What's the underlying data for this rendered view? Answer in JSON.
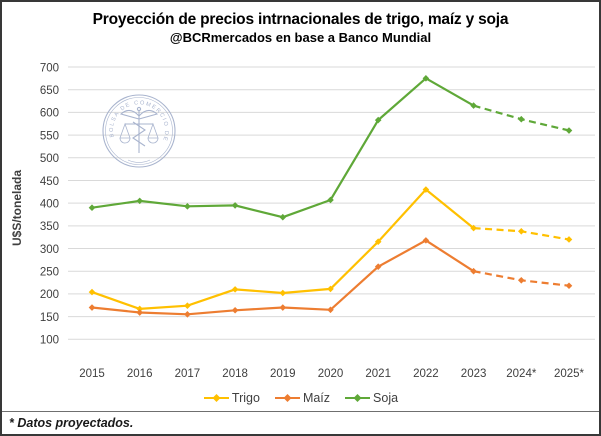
{
  "chart_data": {
    "type": "line",
    "title": "Proyección de precios intrnacionales de trigo, maíz y soja",
    "subtitle": "@BCRmercados en base a Banco Mundial",
    "ylabel": "U$S/tonelada",
    "xlabel": "",
    "categories": [
      "2015",
      "2016",
      "2017",
      "2018",
      "2019",
      "2020",
      "2021",
      "2022",
      "2023",
      "2024*",
      "2025*"
    ],
    "ylim": [
      100,
      700
    ],
    "ytick_step": 50,
    "grid": true,
    "gridline_color": "#d9d9d9",
    "legend_position": "bottom",
    "projected_from_index": 8,
    "series": [
      {
        "name": "Trigo",
        "color": "#FFC000",
        "values": [
          204,
          167,
          174,
          210,
          202,
          211,
          315,
          430,
          345,
          338,
          320
        ]
      },
      {
        "name": "Maíz",
        "color": "#ED7D31",
        "values": [
          170,
          159,
          155,
          164,
          170,
          165,
          260,
          318,
          250,
          230,
          218
        ]
      },
      {
        "name": "Soja",
        "color": "#5FA838",
        "values": [
          390,
          405,
          393,
          395,
          369,
          407,
          583,
          675,
          615,
          585,
          560
        ]
      }
    ]
  },
  "watermark": {
    "ring_text": "BOLSA DE COMERCIO DE ROSARIO",
    "color": "#a5b1cc"
  },
  "footer": {
    "note": "* Datos proyectados."
  }
}
